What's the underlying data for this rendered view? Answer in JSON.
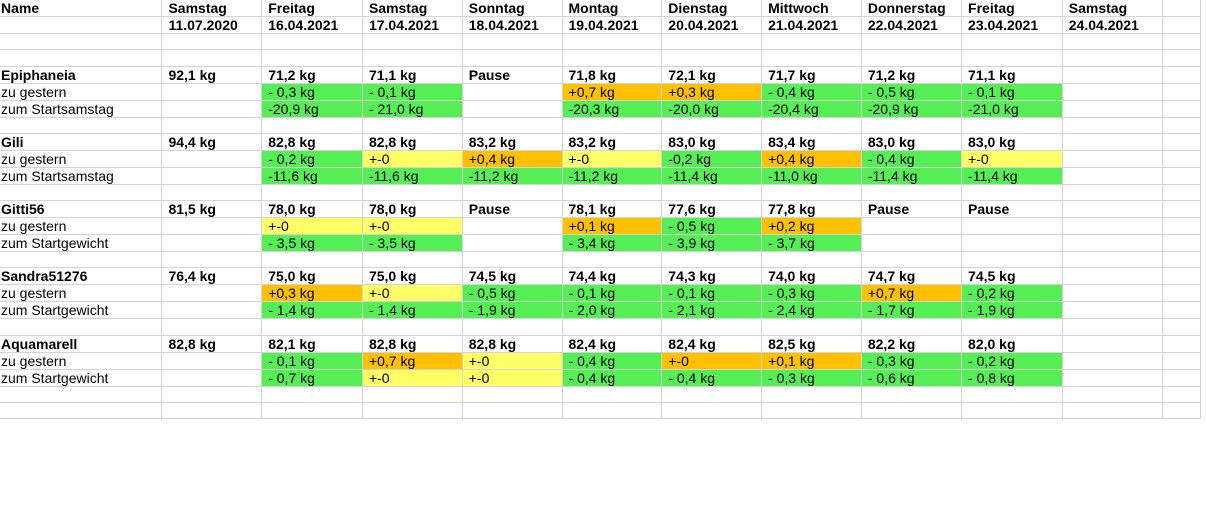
{
  "header": {
    "name_label": "Name",
    "columns": [
      {
        "day": "Samstag",
        "date": "11.07.2020"
      },
      {
        "day": "Freitag",
        "date": "16.04.2021"
      },
      {
        "day": "Samstag",
        "date": "17.04.2021"
      },
      {
        "day": "Sonntag",
        "date": "18.04.2021"
      },
      {
        "day": "Montag",
        "date": "19.04.2021"
      },
      {
        "day": "Dienstag",
        "date": "20.04.2021"
      },
      {
        "day": "Mittwoch",
        "date": "21.04.2021"
      },
      {
        "day": "Donnerstag",
        "date": "22.04.2021"
      },
      {
        "day": "Freitag",
        "date": "23.04.2021"
      },
      {
        "day": "Samstag",
        "date": "24.04.2021"
      }
    ]
  },
  "colors": {
    "green": "#55ee55",
    "orange": "#ffc000",
    "yellow": "#ffff66"
  },
  "participants": [
    {
      "name": "Epiphaneia",
      "weights": [
        "92,1 kg",
        "71,2 kg",
        "71,1 kg",
        "Pause",
        "71,8 kg",
        "72,1 kg",
        "71,7 kg",
        "71,2 kg",
        "71,1 kg",
        ""
      ],
      "diff_label": "zu gestern",
      "diff": [
        "",
        "- 0,3 kg",
        "- 0,1 kg",
        "",
        "+0,7 kg",
        "+0,3 kg",
        "- 0,4 kg",
        "- 0,5 kg",
        "- 0,1 kg",
        ""
      ],
      "diff_colors": [
        "",
        "green",
        "green",
        "",
        "orange",
        "orange",
        "green",
        "green",
        "green",
        ""
      ],
      "total_label": "zum Startsamstag",
      "total": [
        "",
        "-20,9 kg",
        "- 21,0 kg",
        "",
        "-20,3 kg",
        "-20,0 kg",
        "-20,4 kg",
        "-20,9 kg",
        "-21,0 kg",
        ""
      ],
      "total_colors": [
        "",
        "green",
        "green",
        "",
        "green",
        "green",
        "green",
        "green",
        "green",
        ""
      ]
    },
    {
      "name": "Gili",
      "weights": [
        "94,4 kg",
        "82,8 kg",
        "82,8 kg",
        "83,2 kg",
        "83,2 kg",
        "83,0 kg",
        "83,4 kg",
        "83,0 kg",
        "83,0 kg",
        ""
      ],
      "diff_label": "zu gestern",
      "diff": [
        "",
        "- 0,2 kg",
        "+-0",
        "+0,4 kg",
        "+-0",
        "-0,2 kg",
        "+0,4 kg",
        "- 0,4 kg",
        "+-0",
        ""
      ],
      "diff_colors": [
        "",
        "green",
        "yellow",
        "orange",
        "yellow",
        "green",
        "orange",
        "green",
        "yellow",
        ""
      ],
      "total_label": "zum Startsamstag",
      "total": [
        "",
        "-11,6 kg",
        "-11,6 kg",
        "-11,2 kg",
        "-11,2 kg",
        "-11,4 kg",
        "-11,0 kg",
        "-11,4 kg",
        "-11,4 kg",
        ""
      ],
      "total_colors": [
        "",
        "green",
        "green",
        "green",
        "green",
        "green",
        "green",
        "green",
        "green",
        ""
      ]
    },
    {
      "name": "Gitti56",
      "weights": [
        "81,5 kg",
        "78,0 kg",
        "78,0 kg",
        "Pause",
        "78,1 kg",
        "77,6 kg",
        "77,8 kg",
        "Pause",
        "Pause",
        ""
      ],
      "diff_label": "zu gestern",
      "diff": [
        "",
        "+-0",
        "+-0",
        "",
        "+0,1 kg",
        "- 0,5 kg",
        "+0,2 kg",
        "",
        "",
        ""
      ],
      "diff_colors": [
        "",
        "yellow",
        "yellow",
        "",
        "orange",
        "green",
        "orange",
        "",
        "",
        ""
      ],
      "total_label": "zum Startgewicht",
      "total": [
        "",
        "- 3,5 kg",
        "- 3,5 kg",
        "",
        "- 3,4 kg",
        "- 3,9 kg",
        "- 3,7 kg",
        "",
        "",
        ""
      ],
      "total_colors": [
        "",
        "green",
        "green",
        "",
        "green",
        "green",
        "green",
        "",
        "",
        ""
      ]
    },
    {
      "name": "Sandra51276",
      "weights": [
        "76,4 kg",
        "75,0 kg",
        "75,0 kg",
        "74,5 kg",
        "74,4 kg",
        "74,3 kg",
        "74,0 kg",
        "74,7 kg",
        "74,5 kg",
        ""
      ],
      "diff_label": "zu gestern",
      "diff": [
        "",
        "+0,3 kg",
        "+-0",
        "- 0,5 kg",
        "- 0,1 kg",
        "- 0,1 kg",
        "- 0,3 kg",
        "+0,7 kg",
        "- 0,2 kg",
        ""
      ],
      "diff_colors": [
        "",
        "orange",
        "yellow",
        "green",
        "green",
        "green",
        "green",
        "orange",
        "green",
        ""
      ],
      "total_label": "zum Startgewicht",
      "total": [
        "",
        "- 1,4 kg",
        "- 1,4 kg",
        "- 1,9 kg",
        "- 2,0 kg",
        "- 2,1 kg",
        "- 2,4 kg",
        "- 1,7 kg",
        "- 1,9 kg",
        ""
      ],
      "total_colors": [
        "",
        "green",
        "green",
        "green",
        "green",
        "green",
        "green",
        "green",
        "green",
        ""
      ]
    },
    {
      "name": "Aquamarell",
      "weights": [
        "82,8 kg",
        "82,1 kg",
        "82,8 kg",
        "82,8 kg",
        "82,4 kg",
        "82,4 kg",
        "82,5 kg",
        "82,2 kg",
        "82,0 kg",
        ""
      ],
      "diff_label": "zu gestern",
      "diff": [
        "",
        "- 0,1 kg",
        "+0,7 kg",
        "+-0",
        "- 0,4 kg",
        "+-0",
        "+0,1 kg",
        "- 0,3 kg",
        "- 0,2 kg",
        ""
      ],
      "diff_colors": [
        "",
        "green",
        "orange",
        "yellow",
        "green",
        "orange",
        "orange",
        "green",
        "green",
        ""
      ],
      "total_label": "zum Startgewicht",
      "total": [
        "",
        "- 0,7 kg",
        "+-0",
        "+-0",
        "- 0,4 kg",
        "- 0,4 kg",
        "- 0,3 kg",
        "- 0,6 kg",
        "- 0,8 kg",
        ""
      ],
      "total_colors": [
        "",
        "green",
        "yellow",
        "yellow",
        "green",
        "green",
        "green",
        "green",
        "green",
        ""
      ]
    }
  ]
}
